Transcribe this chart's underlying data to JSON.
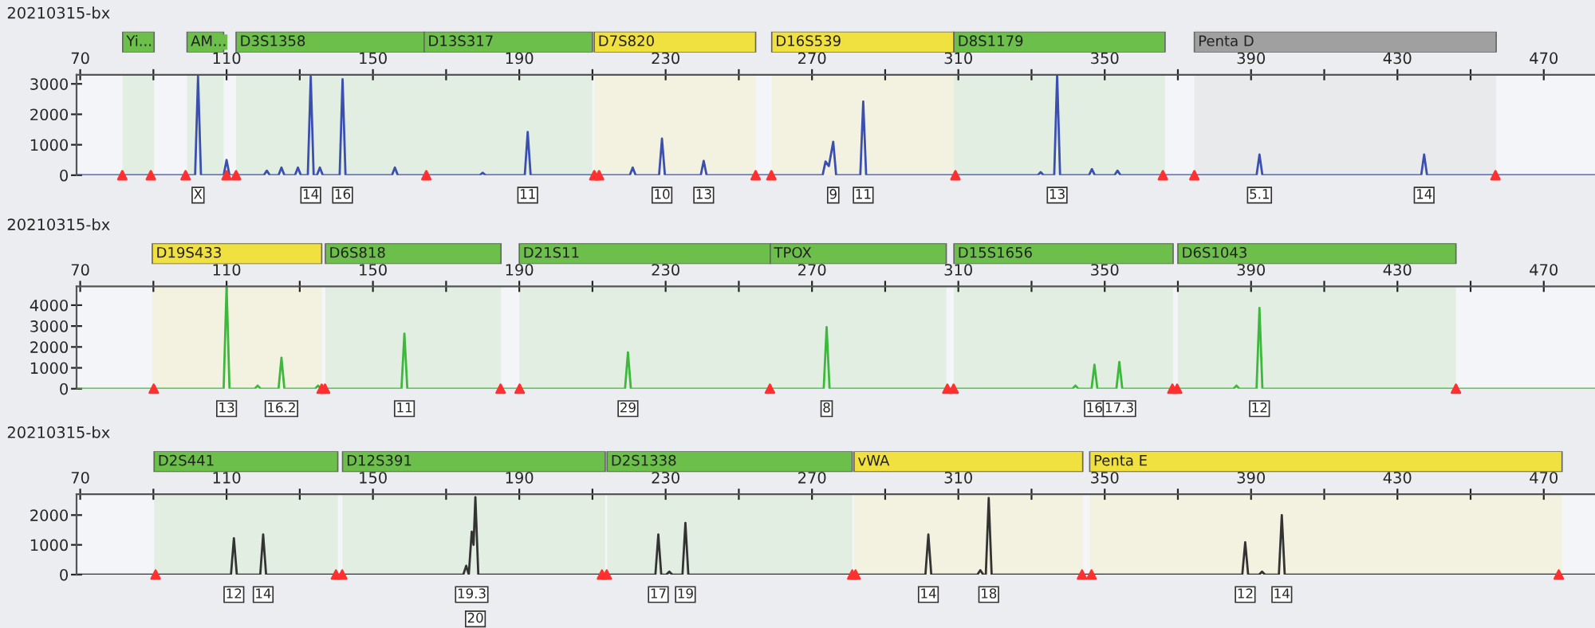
{
  "chart_data": [
    {
      "type": "line",
      "title": "20210315-bx",
      "xlim": [
        69,
        484
      ],
      "ylim": [
        0,
        3300
      ],
      "xticks": [
        70,
        {
          "value": 90,
          "label": null
        },
        110,
        {
          "value": 130,
          "label": null
        },
        150,
        {
          "value": 170,
          "label": null
        },
        190,
        {
          "value": 210,
          "label": null
        },
        230,
        {
          "value": 250,
          "label": null
        },
        270,
        {
          "value": 290,
          "label": null
        },
        310,
        {
          "value": 330,
          "label": null
        },
        350,
        {
          "value": 370,
          "label": null
        },
        390,
        {
          "value": 410,
          "label": null
        },
        430,
        {
          "value": 450,
          "label": null
        },
        470
      ],
      "yticks": [
        0,
        1000,
        2000,
        3000
      ],
      "grid": false,
      "tick_labels": "xy",
      "series": [
        {
          "type": "line",
          "color": "#3a4fb0",
          "x": [
            69,
            101.4,
            102.2,
            103.0,
            109.2,
            110,
            110.8,
            120.2,
            121,
            121.8,
            124.2,
            125,
            125.8,
            128.7,
            129.5,
            130.3,
            132.2,
            133,
            133.8,
            134.7,
            135.5,
            136.3,
            140.9,
            141.7,
            142.5,
            155.2,
            156,
            156.8,
            179.2,
            180,
            180.8,
            191.5,
            192.3,
            193.1,
            220.2,
            221,
            221.8,
            228.2,
            229,
            229.8,
            239.6,
            240.4,
            241.2,
            272.9,
            273.7,
            274.6,
            275.8,
            276.6,
            283.2,
            284,
            284.8,
            331.7,
            332.5,
            333.3,
            336.2,
            337,
            337.8,
            345.7,
            346.5,
            347.3,
            352.7,
            353.5,
            354.3,
            391.5,
            392.3,
            393.1,
            436.5,
            437.3,
            438.1,
            484
          ],
          "values": [
            0,
            0,
            3250,
            0,
            0,
            500,
            0,
            0,
            150,
            0,
            0,
            250,
            0,
            0,
            250,
            0,
            0,
            3250,
            0,
            0,
            250,
            0,
            0,
            3150,
            0,
            0,
            250,
            0,
            0,
            80,
            0,
            0,
            1420,
            0,
            0,
            250,
            0,
            0,
            1200,
            0,
            0,
            470,
            0,
            0,
            450,
            300,
            1100,
            0,
            0,
            2420,
            0,
            0,
            100,
            0,
            0,
            3300,
            0,
            0,
            200,
            0,
            0,
            150,
            0,
            0,
            680,
            0,
            0,
            680,
            0,
            0
          ]
        },
        {
          "type": "scatter",
          "marker": "triangle",
          "color": "#ff3030",
          "x": [
            81.5,
            89.3,
            98.8,
            110,
            112.6,
            164.6,
            210.5,
            211.8,
            254.6,
            258.9,
            309.2,
            365.9,
            374.5,
            456.8
          ],
          "values": [
            0,
            0,
            0,
            0,
            0,
            0,
            0,
            0,
            0,
            0,
            0,
            0,
            0,
            0
          ]
        }
      ],
      "bands": [
        {
          "axis": "x",
          "from": 81.6,
          "to": 90.2,
          "label": "Yi...",
          "color": "#6cbf4a"
        },
        {
          "axis": "x",
          "from": 99.2,
          "to": 109.2,
          "label": "AM...",
          "color": "#6cbf4a"
        },
        {
          "axis": "x",
          "from": 112.6,
          "to": 164,
          "label": "D3S1358",
          "color": "#6cbf4a"
        },
        {
          "axis": "x",
          "from": 164,
          "to": 210,
          "label": "D13S317",
          "color": "#6cbf4a"
        },
        {
          "axis": "x",
          "from": 210.5,
          "to": 254.6,
          "label": "D7S820",
          "color": "#f0e040"
        },
        {
          "axis": "x",
          "from": 259,
          "to": 308.8,
          "label": "D16S539",
          "color": "#f0e040"
        },
        {
          "axis": "x",
          "from": 308.8,
          "to": 366.5,
          "label": "D8S1179",
          "color": "#6cbf4a"
        },
        {
          "axis": "x",
          "from": 374.5,
          "to": 457,
          "label": "Penta D",
          "color": "#a0a0a0"
        }
      ],
      "annotations": [
        {
          "text": "X",
          "x": 102.2,
          "y": 0
        },
        {
          "text": "14",
          "x": 133,
          "y": 0
        },
        {
          "text": "16",
          "x": 141.7,
          "y": 0
        },
        {
          "text": "11",
          "x": 192.3,
          "y": 0
        },
        {
          "text": "10",
          "x": 229,
          "y": 0
        },
        {
          "text": "13",
          "x": 240.4,
          "y": 0
        },
        {
          "text": "9",
          "x": 275.8,
          "y": 0
        },
        {
          "text": "11",
          "x": 284,
          "y": 0
        },
        {
          "text": "13",
          "x": 337,
          "y": 0
        },
        {
          "text": "5.1",
          "x": 392.3,
          "y": 0
        },
        {
          "text": "14",
          "x": 437.3,
          "y": 0
        }
      ]
    },
    {
      "type": "line",
      "title": "20210315-bx",
      "xlim": [
        69,
        484
      ],
      "ylim": [
        0,
        4900
      ],
      "xticks": [
        70,
        {
          "value": 90,
          "label": null
        },
        110,
        {
          "value": 130,
          "label": null
        },
        150,
        {
          "value": 170,
          "label": null
        },
        190,
        {
          "value": 210,
          "label": null
        },
        230,
        {
          "value": 250,
          "label": null
        },
        270,
        {
          "value": 290,
          "label": null
        },
        310,
        {
          "value": 330,
          "label": null
        },
        350,
        {
          "value": 370,
          "label": null
        },
        390,
        {
          "value": 410,
          "label": null
        },
        430,
        {
          "value": 450,
          "label": null
        },
        470
      ],
      "yticks": [
        0,
        1000,
        2000,
        3000,
        4000
      ],
      "grid": false,
      "tick_labels": "xy",
      "series": [
        {
          "type": "line",
          "color": "#3cb83c",
          "x": [
            69,
            109.2,
            110,
            110.8,
            117.7,
            118.5,
            119.3,
            124.2,
            125,
            125.8,
            134.2,
            135,
            135.8,
            157.8,
            158.6,
            159.4,
            218.9,
            219.7,
            220.5,
            273.2,
            274,
            274.8,
            341.2,
            342,
            342.8,
            346.4,
            347.2,
            348,
            353.2,
            354,
            354.8,
            385.2,
            386,
            386.8,
            391.5,
            392.3,
            393.1,
            484
          ],
          "values": [
            0,
            0,
            4900,
            0,
            0,
            150,
            0,
            0,
            1480,
            0,
            0,
            150,
            0,
            0,
            2640,
            0,
            0,
            1740,
            0,
            0,
            2950,
            0,
            0,
            150,
            0,
            0,
            1150,
            0,
            0,
            1280,
            0,
            0,
            150,
            0,
            0,
            3870,
            0,
            0
          ]
        },
        {
          "type": "scatter",
          "marker": "triangle",
          "color": "#ff3030",
          "x": [
            90.1,
            136,
            136.9,
            184.9,
            190.1,
            258.5,
            307,
            308.7,
            368.5,
            369.8,
            446
          ],
          "values": [
            0,
            0,
            0,
            0,
            0,
            0,
            0,
            0,
            0,
            0,
            0
          ]
        }
      ],
      "bands": [
        {
          "axis": "x",
          "from": 89.7,
          "to": 136,
          "label": "D19S433",
          "color": "#f0e040"
        },
        {
          "axis": "x",
          "from": 137,
          "to": 185,
          "label": "D6S818",
          "color": "#6cbf4a"
        },
        {
          "axis": "x",
          "from": 190,
          "to": 258.6,
          "label": "D21S11",
          "color": "#6cbf4a"
        },
        {
          "axis": "x",
          "from": 258.6,
          "to": 306.7,
          "label": "TPOX",
          "color": "#6cbf4a"
        },
        {
          "axis": "x",
          "from": 308.8,
          "to": 368.7,
          "label": "D15S1656",
          "color": "#6cbf4a"
        },
        {
          "axis": "x",
          "from": 370,
          "to": 446,
          "label": "D6S1043",
          "color": "#6cbf4a"
        }
      ],
      "annotations": [
        {
          "text": "13",
          "x": 110,
          "y": 0
        },
        {
          "text": "16.2",
          "x": 125,
          "y": 0
        },
        {
          "text": "11",
          "x": 158.6,
          "y": 0
        },
        {
          "text": "29",
          "x": 219.7,
          "y": 0
        },
        {
          "text": "8",
          "x": 274,
          "y": 0
        },
        {
          "text": "16",
          "x": 347.2,
          "y": 0
        },
        {
          "text": "17.3",
          "x": 354,
          "y": 0
        },
        {
          "text": "12",
          "x": 392.3,
          "y": 0
        }
      ]
    },
    {
      "type": "line",
      "title": "20210315-bx",
      "xlim": [
        69,
        484
      ],
      "ylim": [
        0,
        2700
      ],
      "xticks": [
        70,
        {
          "value": 90,
          "label": null
        },
        110,
        {
          "value": 130,
          "label": null
        },
        150,
        {
          "value": 170,
          "label": null
        },
        190,
        {
          "value": 210,
          "label": null
        },
        230,
        {
          "value": 250,
          "label": null
        },
        270,
        {
          "value": 290,
          "label": null
        },
        310,
        {
          "value": 330,
          "label": null
        },
        350,
        {
          "value": 370,
          "label": null
        },
        390,
        {
          "value": 410,
          "label": null
        },
        430,
        {
          "value": 450,
          "label": null
        },
        470
      ],
      "yticks": [
        0,
        1000,
        2000
      ],
      "grid": false,
      "tick_labels": "xy",
      "series": [
        {
          "type": "line",
          "color": "#333333",
          "x": [
            69,
            111.2,
            112,
            112.8,
            119.2,
            120,
            120.8,
            174.7,
            175.5,
            176.2,
            177,
            177.5,
            178,
            178.8,
            227.2,
            228,
            228.8,
            230.2,
            231,
            231.8,
            234.6,
            235.4,
            236.2,
            301,
            301.8,
            302.6,
            315.2,
            316,
            316.8,
            317.5,
            318.3,
            319.1,
            387.6,
            388.4,
            389.2,
            392.2,
            393,
            393.8,
            397.6,
            398.4,
            399.2,
            484
          ],
          "values": [
            0,
            0,
            1220,
            0,
            0,
            1350,
            0,
            0,
            300,
            0,
            1440,
            1000,
            2600,
            0,
            0,
            1350,
            0,
            0,
            100,
            0,
            0,
            1740,
            0,
            0,
            1350,
            0,
            0,
            150,
            0,
            0,
            2570,
            0,
            0,
            1090,
            0,
            0,
            100,
            0,
            0,
            2000,
            0,
            0
          ]
        },
        {
          "type": "scatter",
          "marker": "triangle",
          "color": "#ff3030",
          "x": [
            90.6,
            139.9,
            141.6,
            212.6,
            213.9,
            281,
            281.9,
            343.8,
            346.4,
            474.1
          ],
          "values": [
            0,
            0,
            0,
            0,
            0,
            0,
            0,
            0,
            0,
            0
          ]
        }
      ],
      "bands": [
        {
          "axis": "x",
          "from": 90.2,
          "to": 140.4,
          "label": "D2S441",
          "color": "#6cbf4a"
        },
        {
          "axis": "x",
          "from": 141.7,
          "to": 213.5,
          "label": "D12S391",
          "color": "#6cbf4a"
        },
        {
          "axis": "x",
          "from": 214,
          "to": 281,
          "label": "D2S1338",
          "color": "#6cbf4a"
        },
        {
          "axis": "x",
          "from": 281.5,
          "to": 344,
          "label": "vWA",
          "color": "#f0e040"
        },
        {
          "axis": "x",
          "from": 345.9,
          "to": 475,
          "label": "Penta E",
          "color": "#f0e040"
        }
      ],
      "annotations": [
        {
          "text": "12",
          "x": 112,
          "y": 0
        },
        {
          "text": "14",
          "x": 120,
          "y": 0
        },
        {
          "text": "19.3",
          "x": 177,
          "y": 0
        },
        {
          "text": "20",
          "x": 178,
          "y": 0
        },
        {
          "text": "17",
          "x": 228,
          "y": 0
        },
        {
          "text": "19",
          "x": 235.4,
          "y": 0
        },
        {
          "text": "14",
          "x": 301.8,
          "y": 0
        },
        {
          "text": "18",
          "x": 318.3,
          "y": 0
        },
        {
          "text": "12",
          "x": 388.4,
          "y": 0
        },
        {
          "text": "14",
          "x": 398.4,
          "y": 0
        }
      ]
    }
  ]
}
